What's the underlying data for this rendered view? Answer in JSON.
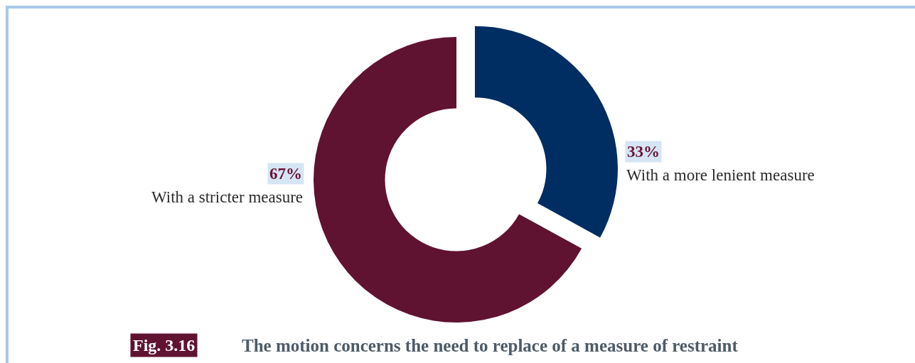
{
  "chart_data": {
    "type": "donut",
    "title": "The motion concerns the need to replace of a measure of restraint",
    "annotations": [
      "Fig. 3.16"
    ],
    "categories": [
      "With a more lenient measure",
      "With a stricter measure"
    ],
    "values": [
      33,
      67
    ],
    "colors": [
      "#002d62",
      "#601231"
    ],
    "value_labels": [
      "33%",
      "67%"
    ],
    "legend": false
  }
}
